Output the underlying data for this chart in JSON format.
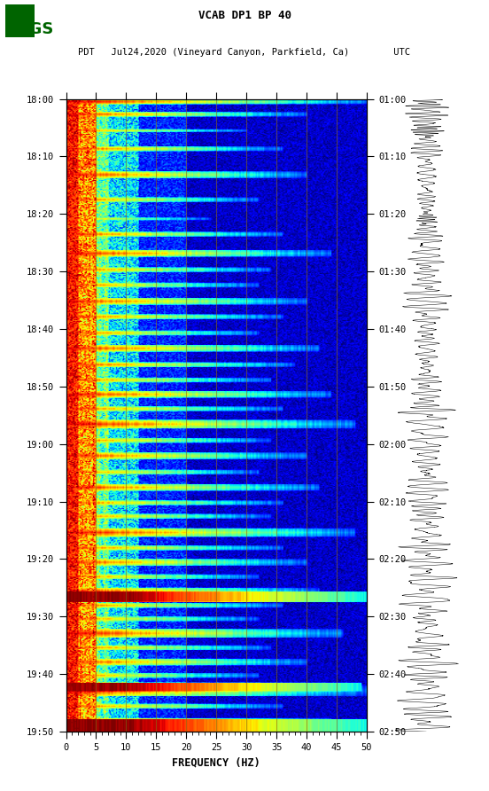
{
  "title_line1": "VCAB DP1 BP 40",
  "title_line2_left": "PDT   Jul24,2020 (Vineyard Canyon, Parkfield, Ca)",
  "title_line2_right": "UTC",
  "xlabel": "FREQUENCY (HZ)",
  "freq_min": 0,
  "freq_max": 50,
  "pdt_yticks": [
    "18:00",
    "18:10",
    "18:20",
    "18:30",
    "18:40",
    "18:50",
    "19:00",
    "19:10",
    "19:20",
    "19:30",
    "19:40",
    "19:50"
  ],
  "utc_yticks": [
    "01:00",
    "01:10",
    "01:20",
    "01:30",
    "01:40",
    "01:50",
    "02:00",
    "02:10",
    "02:20",
    "02:30",
    "02:40",
    "02:50"
  ],
  "xticks": [
    0,
    5,
    10,
    15,
    20,
    25,
    30,
    35,
    40,
    45,
    50
  ],
  "background_color": "#ffffff",
  "fig_width": 5.52,
  "fig_height": 8.92,
  "dpi": 100,
  "n_time_bins": 660,
  "n_freq_bins": 250,
  "vertical_grid_freqs": [
    5,
    10,
    15,
    20,
    25,
    30,
    35,
    40,
    45
  ],
  "grid_color": "#8B6914",
  "grid_alpha": 0.6
}
